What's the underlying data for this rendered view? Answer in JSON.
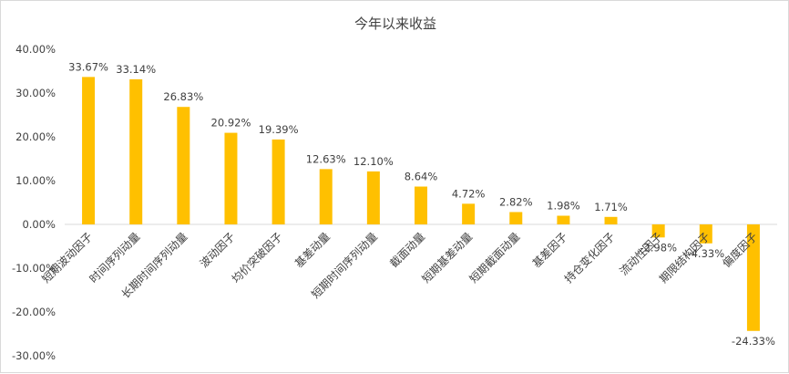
{
  "chart_data": {
    "type": "bar",
    "title": "今年以来收益",
    "categories": [
      "短期波动因子",
      "时间序列动量",
      "长期时间序列动量",
      "波动因子",
      "均价突破因子",
      "基差动量",
      "短期时间序列动量",
      "截面动量",
      "短期基差动量",
      "短期截面动量",
      "基差因子",
      "持仓变化因子",
      "流动性因子",
      "期限结构因子",
      "偏度因子"
    ],
    "values": [
      33.67,
      33.14,
      26.83,
      20.92,
      19.39,
      12.63,
      12.1,
      8.64,
      4.72,
      2.82,
      1.98,
      1.71,
      -2.98,
      -4.33,
      -24.33
    ],
    "data_labels": [
      "33.67%",
      "33.14%",
      "26.83%",
      "20.92%",
      "19.39%",
      "12.63%",
      "12.10%",
      "8.64%",
      "4.72%",
      "2.82%",
      "1.98%",
      "1.71%",
      "-2.98%",
      "-4.33%",
      "-24.33%"
    ],
    "y_ticks": [
      40,
      30,
      20,
      10,
      0,
      -10,
      -20,
      -30
    ],
    "y_tick_labels": [
      "40.00%",
      "30.00%",
      "20.00%",
      "10.00%",
      "0.00%",
      "-10.00%",
      "-20.00%",
      "-30.00%"
    ],
    "ylim": [
      -30,
      40
    ],
    "grid": false,
    "bar_color": "#FFC000"
  }
}
